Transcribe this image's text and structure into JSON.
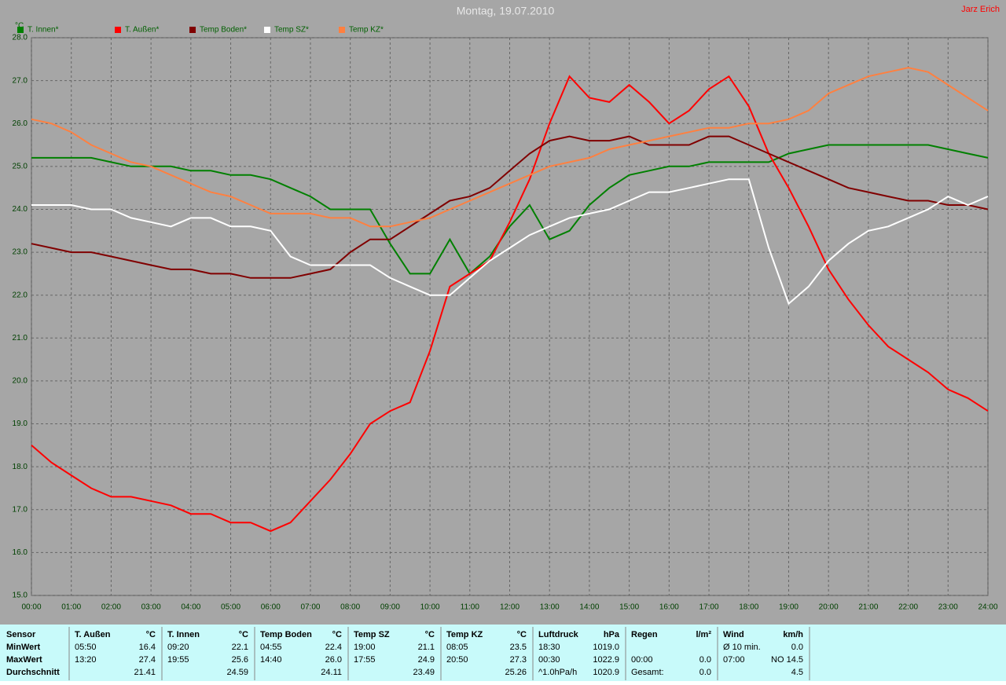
{
  "chart_data": {
    "type": "line",
    "title": "Montag, 19.07.2010",
    "author": "Jarz Erich",
    "y_label": "°C",
    "grid": true,
    "xlim": [
      0,
      24
    ],
    "ylim": [
      15,
      28
    ],
    "xticks": [
      {
        "value": 0,
        "label": "00:00"
      },
      {
        "value": 1,
        "label": "01:00"
      },
      {
        "value": 2,
        "label": "02:00"
      },
      {
        "value": 3,
        "label": "03:00"
      },
      {
        "value": 4,
        "label": "04:00"
      },
      {
        "value": 5,
        "label": "05:00"
      },
      {
        "value": 6,
        "label": "06:00"
      },
      {
        "value": 7,
        "label": "07:00"
      },
      {
        "value": 8,
        "label": "08:00"
      },
      {
        "value": 9,
        "label": "09:00"
      },
      {
        "value": 10,
        "label": "10:00"
      },
      {
        "value": 11,
        "label": "11:00"
      },
      {
        "value": 12,
        "label": "12:00"
      },
      {
        "value": 13,
        "label": "13:00"
      },
      {
        "value": 14,
        "label": "14:00"
      },
      {
        "value": 15,
        "label": "15:00"
      },
      {
        "value": 16,
        "label": "16:00"
      },
      {
        "value": 17,
        "label": "17:00"
      },
      {
        "value": 18,
        "label": "18:00"
      },
      {
        "value": 19,
        "label": "19:00"
      },
      {
        "value": 20,
        "label": "20:00"
      },
      {
        "value": 21,
        "label": "21:00"
      },
      {
        "value": 22,
        "label": "22:00"
      },
      {
        "value": 23,
        "label": "23:00"
      },
      {
        "value": 24,
        "label": "24:00"
      }
    ],
    "yticks": [
      {
        "value": 15,
        "label": "15.0"
      },
      {
        "value": 16,
        "label": "16.0"
      },
      {
        "value": 17,
        "label": "17.0"
      },
      {
        "value": 18,
        "label": "18.0"
      },
      {
        "value": 19,
        "label": "19.0"
      },
      {
        "value": 20,
        "label": "20.0"
      },
      {
        "value": 21,
        "label": "21.0"
      },
      {
        "value": 22,
        "label": "22.0"
      },
      {
        "value": 23,
        "label": "23.0"
      },
      {
        "value": 24,
        "label": "24.0"
      },
      {
        "value": 25,
        "label": "25.0"
      },
      {
        "value": 26,
        "label": "26.0"
      },
      {
        "value": 27,
        "label": "27.0"
      },
      {
        "value": 28,
        "label": "28.0"
      }
    ],
    "x": [
      0,
      0.5,
      1,
      1.5,
      2,
      2.5,
      3,
      3.5,
      4,
      4.5,
      5,
      5.5,
      6,
      6.5,
      7,
      7.5,
      8,
      8.5,
      9,
      9.5,
      10,
      10.5,
      11,
      11.5,
      12,
      12.5,
      13,
      13.5,
      14,
      14.5,
      15,
      15.5,
      16,
      16.5,
      17,
      17.5,
      18,
      18.5,
      19,
      19.5,
      20,
      20.5,
      21,
      21.5,
      22,
      22.5,
      23,
      23.5,
      24
    ],
    "series": [
      {
        "name": "T. Innen*",
        "color": "#008000",
        "values": [
          25.2,
          25.2,
          25.2,
          25.2,
          25.1,
          25.0,
          25.0,
          25.0,
          24.9,
          24.9,
          24.8,
          24.8,
          24.7,
          24.5,
          24.3,
          24.0,
          24.0,
          24.0,
          23.2,
          22.5,
          22.5,
          23.3,
          22.5,
          22.9,
          23.6,
          24.1,
          23.3,
          23.5,
          24.1,
          24.5,
          24.8,
          24.9,
          25.0,
          25.0,
          25.1,
          25.1,
          25.1,
          25.1,
          25.3,
          25.4,
          25.5,
          25.5,
          25.5,
          25.5,
          25.5,
          25.5,
          25.4,
          25.3,
          25.2
        ]
      },
      {
        "name": "T. Außen*",
        "color": "#ff0000",
        "values": [
          18.5,
          18.1,
          17.8,
          17.5,
          17.3,
          17.3,
          17.2,
          17.1,
          16.9,
          16.9,
          16.7,
          16.7,
          16.5,
          16.7,
          17.2,
          17.7,
          18.3,
          19.0,
          19.3,
          19.5,
          20.7,
          22.2,
          22.5,
          22.8,
          23.7,
          24.7,
          26.0,
          27.1,
          26.6,
          26.5,
          26.9,
          26.5,
          26.0,
          26.3,
          26.8,
          27.1,
          26.4,
          25.3,
          24.5,
          23.6,
          22.6,
          21.9,
          21.3,
          20.8,
          20.5,
          20.2,
          19.8,
          19.6,
          19.3
        ]
      },
      {
        "name": "Temp Boden*",
        "color": "#800000",
        "values": [
          23.2,
          23.1,
          23.0,
          23.0,
          22.9,
          22.8,
          22.7,
          22.6,
          22.6,
          22.5,
          22.5,
          22.4,
          22.4,
          22.4,
          22.5,
          22.6,
          23.0,
          23.3,
          23.3,
          23.6,
          23.9,
          24.2,
          24.3,
          24.5,
          24.9,
          25.3,
          25.6,
          25.7,
          25.6,
          25.6,
          25.7,
          25.5,
          25.5,
          25.5,
          25.7,
          25.7,
          25.5,
          25.3,
          25.1,
          24.9,
          24.7,
          24.5,
          24.4,
          24.3,
          24.2,
          24.2,
          24.1,
          24.1,
          24.0
        ]
      },
      {
        "name": "Temp SZ*",
        "color": "#ffffff",
        "values": [
          24.1,
          24.1,
          24.1,
          24.0,
          24.0,
          23.8,
          23.7,
          23.6,
          23.8,
          23.8,
          23.6,
          23.6,
          23.5,
          22.9,
          22.7,
          22.7,
          22.7,
          22.7,
          22.4,
          22.2,
          22.0,
          22.0,
          22.4,
          22.8,
          23.1,
          23.4,
          23.6,
          23.8,
          23.9,
          24.0,
          24.2,
          24.4,
          24.4,
          24.5,
          24.6,
          24.7,
          24.7,
          23.1,
          21.8,
          22.2,
          22.8,
          23.2,
          23.5,
          23.6,
          23.8,
          24.0,
          24.3,
          24.1,
          24.3
        ]
      },
      {
        "name": "Temp KZ*",
        "color": "#ff8040",
        "values": [
          26.1,
          26.0,
          25.8,
          25.5,
          25.3,
          25.1,
          25.0,
          24.8,
          24.6,
          24.4,
          24.3,
          24.1,
          23.9,
          23.9,
          23.9,
          23.8,
          23.8,
          23.6,
          23.6,
          23.7,
          23.8,
          24.0,
          24.2,
          24.4,
          24.6,
          24.8,
          25.0,
          25.1,
          25.2,
          25.4,
          25.5,
          25.6,
          25.7,
          25.8,
          25.9,
          25.9,
          26.0,
          26.0,
          26.1,
          26.3,
          26.7,
          26.9,
          27.1,
          27.2,
          27.3,
          27.2,
          26.9,
          26.6,
          26.3
        ]
      }
    ]
  },
  "stats": {
    "row_labels": [
      "Sensor",
      "MinWert",
      "MaxWert",
      "Durchschnitt"
    ],
    "groups": [
      {
        "name": "T. Außen",
        "unit": "°C",
        "rows": [
          {
            "left": "05:50",
            "right": "16.4"
          },
          {
            "left": "13:20",
            "right": "27.4"
          },
          {
            "right": "21.41"
          }
        ]
      },
      {
        "name": "T. Innen",
        "unit": "°C",
        "rows": [
          {
            "left": "09:20",
            "right": "22.1"
          },
          {
            "left": "19:55",
            "right": "25.6"
          },
          {
            "right": "24.59"
          }
        ]
      },
      {
        "name": "Temp Boden",
        "unit": "°C",
        "rows": [
          {
            "left": "04:55",
            "right": "22.4"
          },
          {
            "left": "14:40",
            "right": "26.0"
          },
          {
            "right": "24.11"
          }
        ]
      },
      {
        "name": "Temp SZ",
        "unit": "°C",
        "rows": [
          {
            "left": "19:00",
            "right": "21.1"
          },
          {
            "left": "17:55",
            "right": "24.9"
          },
          {
            "right": "23.49"
          }
        ]
      },
      {
        "name": "Temp KZ",
        "unit": "°C",
        "rows": [
          {
            "left": "08:05",
            "right": "23.5"
          },
          {
            "left": "20:50",
            "right": "27.3"
          },
          {
            "right": "25.26"
          }
        ]
      },
      {
        "name": "Luftdruck",
        "unit": "hPa",
        "rows": [
          {
            "left": "18:30",
            "right": "1019.0"
          },
          {
            "left": "00:30",
            "right": "1022.9"
          },
          {
            "left": "^1.0hPa/h",
            "right": "1020.9"
          }
        ]
      },
      {
        "name": "Regen",
        "unit": "l/m²",
        "rows": [
          {},
          {
            "left": "00:00",
            "right": "0.0"
          },
          {
            "left": "Gesamt:",
            "right": "0.0"
          }
        ]
      },
      {
        "name": "Wind",
        "unit": "km/h",
        "rows": [
          {
            "left": "Ø 10 min.",
            "right": "0.0"
          },
          {
            "left": "07:00",
            "right": "NO 14.5"
          },
          {
            "right": "4.5"
          }
        ]
      }
    ]
  }
}
